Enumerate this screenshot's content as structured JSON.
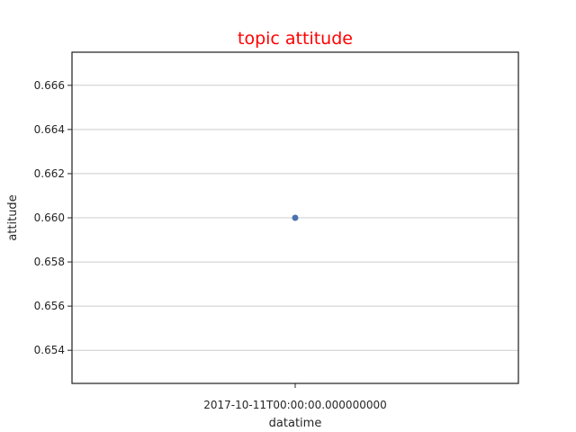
{
  "chart_data": {
    "type": "scatter",
    "title": "topic attitude",
    "xlabel": "datatime",
    "ylabel": "attitude",
    "x_categories": [
      "2017-10-11T00:00:00.000000000"
    ],
    "series": [
      {
        "x": [
          "2017-10-11T00:00:00.000000000"
        ],
        "y": [
          0.66
        ]
      }
    ],
    "ylim": [
      0.6525,
      0.6675
    ],
    "yticks": [
      0.654,
      0.656,
      0.658,
      0.66,
      0.662,
      0.664,
      0.666
    ],
    "ytick_labels": [
      "0.654",
      "0.656",
      "0.658",
      "0.660",
      "0.662",
      "0.664",
      "0.666"
    ],
    "grid": "y-only",
    "colors": {
      "title": "#ff0000",
      "point": "#4c72b0",
      "grid": "#cccccc",
      "frame": "#262626"
    }
  }
}
